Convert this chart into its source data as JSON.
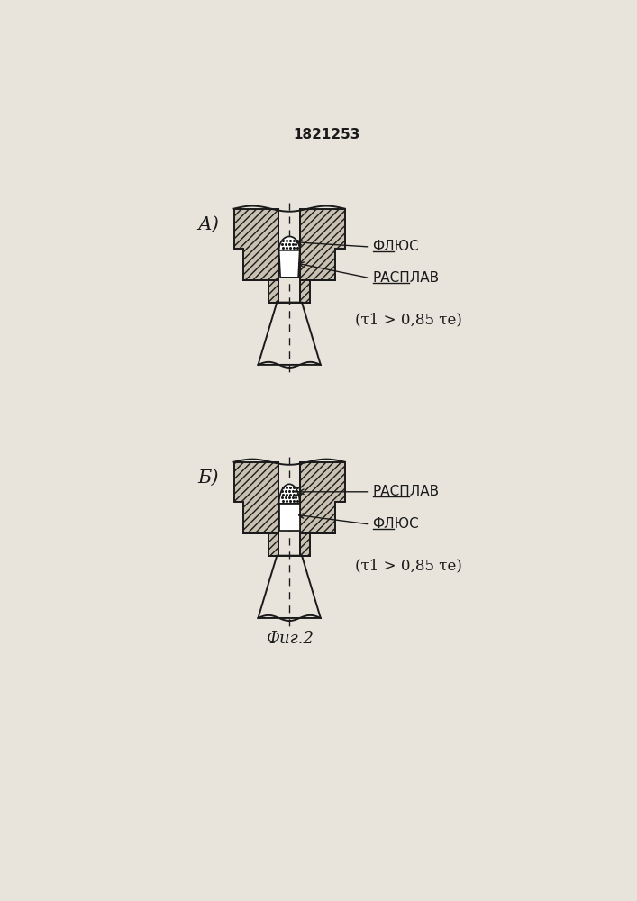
{
  "title": "1821253",
  "fig_caption": "Фиг.2",
  "label_A": "А)",
  "label_B": "Б)",
  "label_flux_A": "ФЛЮС",
  "label_melt_A": "РАСПЛАВ",
  "label_flux_B": "ФЛЮС",
  "label_melt_B": "РАСПЛАВ",
  "formula_A": "(τ1 > 0,85 τе)",
  "formula_B": "(τ1 > 0,85 τе)",
  "bg_color": "#e8e4dc",
  "line_color": "#1a1a1a",
  "fill_color": "#c8c0b0"
}
